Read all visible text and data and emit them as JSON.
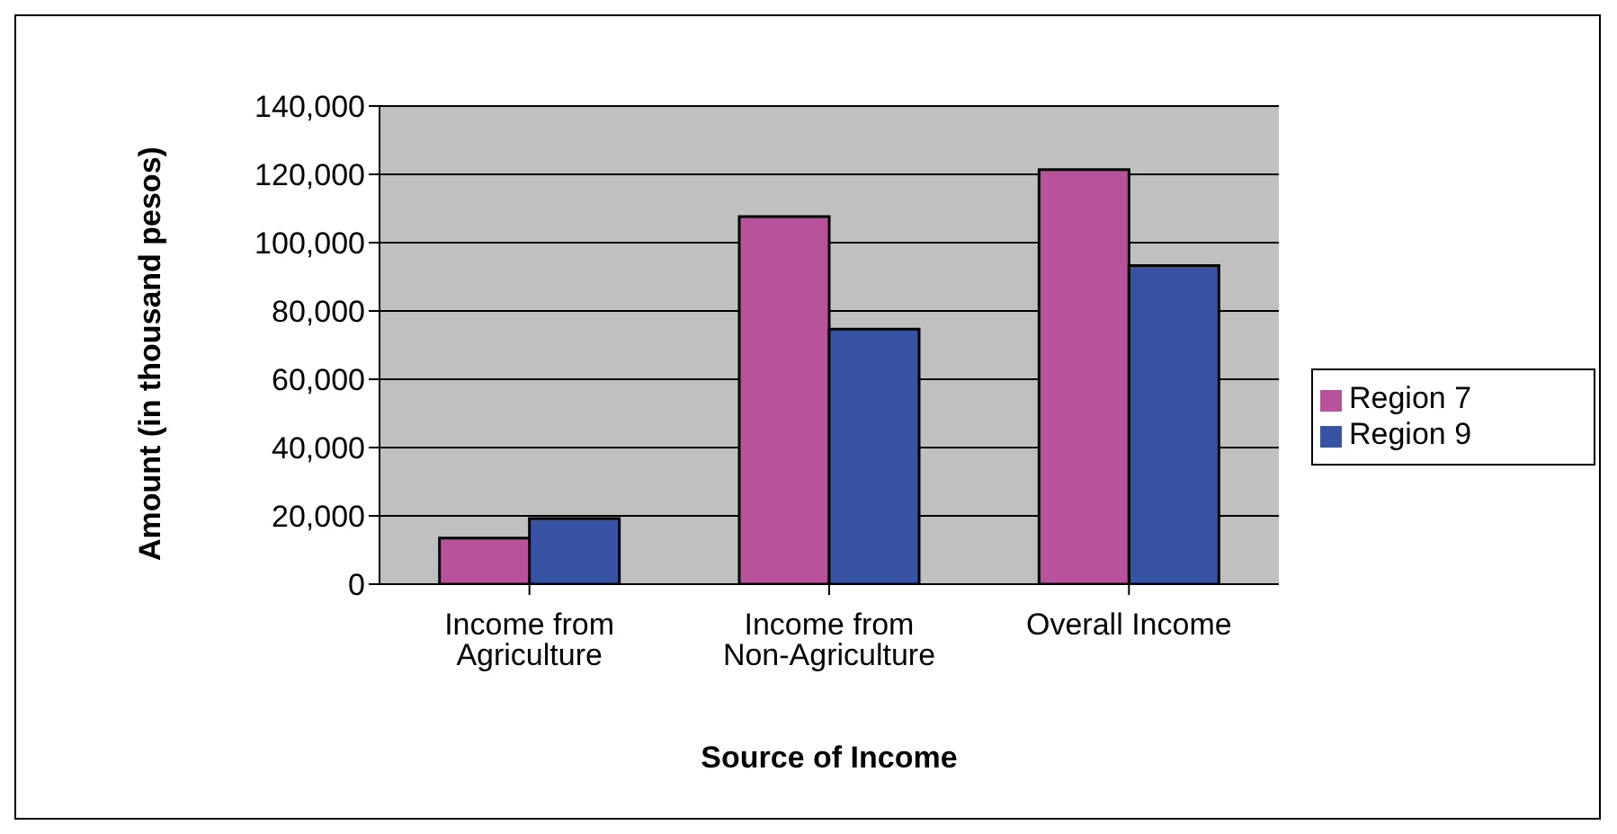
{
  "chart_data": {
    "type": "bar",
    "xlabel": "Source of Income",
    "ylabel": "Amount (in thousand pesos)",
    "categories": [
      "Income from Agriculture",
      "Income from Non-Agriculture",
      "Overall Income"
    ],
    "series": [
      {
        "name": "Region 7",
        "color": "#b8529b",
        "values": [
          13500,
          107600,
          121400
        ]
      },
      {
        "name": "Region 9",
        "color": "#3853a4",
        "values": [
          19200,
          74700,
          93300
        ]
      }
    ],
    "ylim": [
      0,
      140000
    ],
    "yticks": [
      0,
      {
        "value": 20000,
        "label": "20,000"
      },
      {
        "value": 40000,
        "label": "40,000"
      },
      {
        "value": 60000,
        "label": "60,000"
      },
      {
        "value": 80000,
        "label": "80,000"
      },
      {
        "value": 100000,
        "label": "100,000"
      },
      {
        "value": 120000,
        "label": "120,000"
      },
      {
        "value": 140000,
        "label": "140,000"
      }
    ],
    "grid": "y",
    "legend": "right"
  }
}
